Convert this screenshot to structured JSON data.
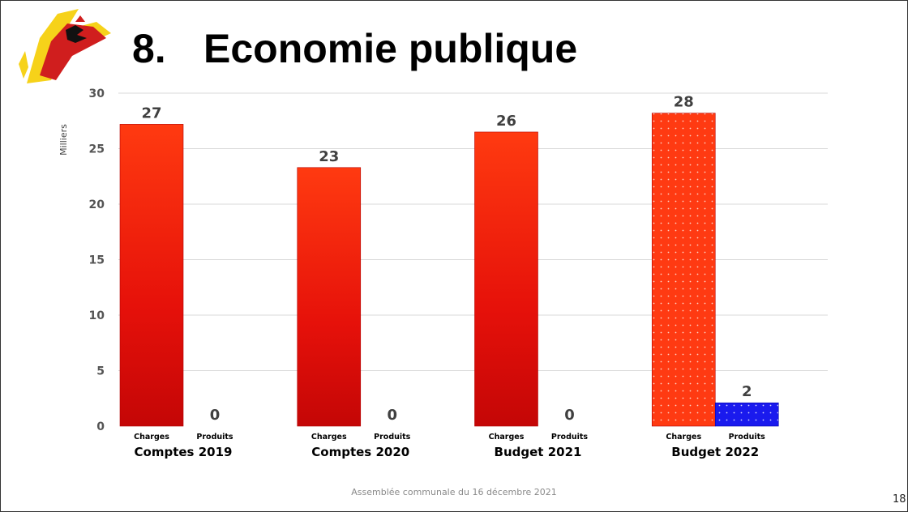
{
  "slide": {
    "title_number": "8.",
    "title_text": "Economie publique",
    "footer": "Assemblée communale du 16 décembre 2021",
    "page_number": "18"
  },
  "logo": {
    "icon": "rooster-emblem-logo",
    "colors": [
      "#f6d21a",
      "#d01e1e",
      "#000000"
    ]
  },
  "chart_data": {
    "type": "bar",
    "unit_label": "Milliers",
    "ylim": [
      0,
      30
    ],
    "yticks": [
      0,
      5,
      10,
      15,
      20,
      25,
      30
    ],
    "grid": true,
    "groups": [
      {
        "label": "Comptes 2019",
        "bars": [
          {
            "category": "Charges",
            "value": 27.2,
            "label": "27"
          },
          {
            "category": "Produits",
            "value": 0,
            "label": "0"
          }
        ]
      },
      {
        "label": "Comptes 2020",
        "bars": [
          {
            "category": "Charges",
            "value": 23.3,
            "label": "23"
          },
          {
            "category": "Produits",
            "value": 0,
            "label": "0"
          }
        ]
      },
      {
        "label": "Budget 2021",
        "bars": [
          {
            "category": "Charges",
            "value": 26.5,
            "label": "26"
          },
          {
            "category": "Produits",
            "value": 0,
            "label": "0"
          }
        ]
      },
      {
        "label": "Budget 2022",
        "bars": [
          {
            "category": "Charges",
            "value": 28.2,
            "label": "28",
            "pattern": "dots"
          },
          {
            "category": "Produits",
            "value": 2.1,
            "label": "2",
            "pattern": "dots"
          }
        ]
      }
    ],
    "colors": {
      "charges": "#e8120a",
      "charges_budget_2022": "#ff3a12",
      "produits_budget_2022": "#1a1aee",
      "grid": "#d9d9d9"
    }
  }
}
